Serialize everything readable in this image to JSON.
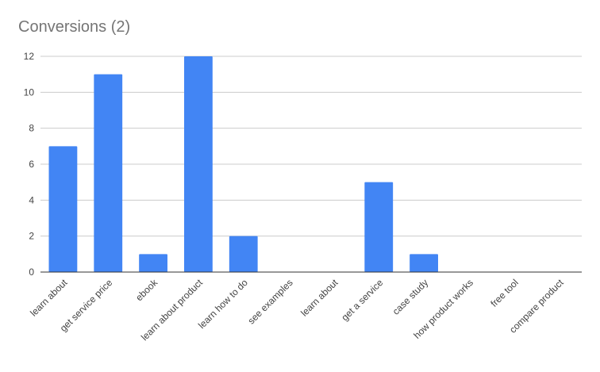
{
  "chart_data": {
    "type": "bar",
    "title": "Conversions (2)",
    "xlabel": "",
    "ylabel": "",
    "categories": [
      "learn about",
      "get service price",
      "ebook",
      "learn about product",
      "learn how to do",
      "see examples",
      "learn about",
      "get a service",
      "case study",
      "how product works",
      "free tool",
      "compare product"
    ],
    "values": [
      7,
      11,
      1,
      12,
      2,
      0,
      0,
      5,
      1,
      0,
      0,
      0
    ],
    "ylim": [
      0,
      12
    ],
    "yticks": [
      0,
      2,
      4,
      6,
      8,
      10,
      12
    ],
    "grid": true,
    "legend": "none",
    "colors": {
      "bar": "#4285F4",
      "gridline": "#cccccc",
      "baseline": "#333333"
    }
  }
}
